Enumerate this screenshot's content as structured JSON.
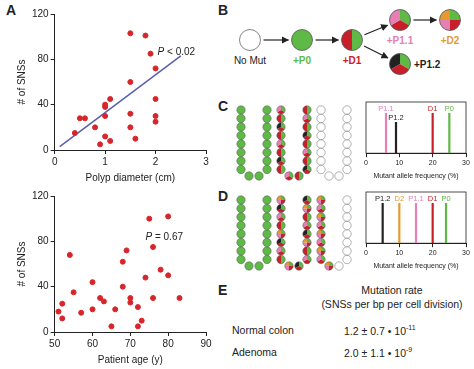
{
  "chart_data": [
    {
      "panel": "A",
      "type": "scatter",
      "x_label": "Polyp diameter (cm)",
      "y_label": "# of SNSs",
      "annotation": "P < 0.02",
      "x": [
        0.4,
        0.5,
        0.6,
        0.8,
        0.9,
        1.0,
        1.0,
        1.0,
        1.1,
        1.0,
        1.1,
        1.5,
        1.5,
        1.5,
        1.6,
        1.8,
        1.9,
        2.0,
        2.0,
        2.0,
        2.0,
        1.5
      ],
      "values": [
        15,
        28,
        28,
        20,
        5,
        30,
        38,
        40,
        45,
        12,
        8,
        103,
        60,
        20,
        10,
        101,
        85,
        72,
        45,
        30,
        25,
        32
      ],
      "color": "#d7262b",
      "xlim": [
        0,
        3
      ],
      "xticks": [
        0,
        1,
        2,
        3
      ],
      "ylim": [
        0,
        120
      ],
      "yticks": [
        0,
        40,
        80,
        120
      ],
      "grid": false,
      "trend_line": {
        "x": [
          0.1,
          2.5
        ],
        "values": [
          3,
          83
        ],
        "color": "#5b5fae"
      }
    },
    {
      "type": "scatter",
      "x_label": "Patient age (y)",
      "y_label": "# of SNSs",
      "annotation": "P = 0.67",
      "x": [
        51,
        52,
        52,
        54,
        55,
        57,
        60,
        60,
        62,
        63,
        65,
        66,
        68,
        68,
        69,
        70,
        70,
        72,
        72,
        74,
        75,
        76,
        76,
        78,
        80,
        80,
        83,
        73
      ],
      "values": [
        18,
        12,
        25,
        68,
        35,
        17,
        20,
        44,
        30,
        27,
        5,
        20,
        40,
        62,
        72,
        30,
        26,
        22,
        5,
        48,
        100,
        75,
        30,
        55,
        102,
        50,
        30,
        10
      ],
      "color": "#d7262b",
      "xlim": [
        50,
        90
      ],
      "xticks": [
        50,
        60,
        70,
        80,
        90
      ],
      "ylim": [
        0,
        120
      ],
      "yticks": [
        0,
        40,
        80,
        120
      ],
      "grid": false
    },
    {
      "panel": "C",
      "type": "spike",
      "x_label": "Mutant allele frequency (%)",
      "categories": [
        "P1.1",
        "P1.2",
        "D1",
        "P0"
      ],
      "values": [
        6,
        9,
        20,
        25
      ],
      "colors": [
        "#e57fb4",
        "#222222",
        "#c8202a",
        "#5fb946"
      ],
      "xlim": [
        0,
        30
      ],
      "xticks": [
        0,
        10,
        20,
        30
      ],
      "grid": false,
      "data_labels": true
    },
    {
      "panel": "D",
      "type": "spike",
      "x_label": "Mutant allele frequency (%)",
      "categories": [
        "P1.2",
        "D2",
        "P1.1",
        "D1",
        "P0"
      ],
      "values": [
        5,
        10,
        15,
        20,
        24
      ],
      "colors": [
        "#222222",
        "#e39a2e",
        "#e57fb4",
        "#c8202a",
        "#5fb946"
      ],
      "xlim": [
        0,
        30
      ],
      "xticks": [
        0,
        10,
        20,
        30
      ],
      "grid": false,
      "data_labels": true
    }
  ],
  "mutations": [
    {
      "name": "P0",
      "color": "#5fb946"
    },
    {
      "name": "D1",
      "color": "#c8202a"
    },
    {
      "name": "P1.1",
      "color": "#e57fb4"
    },
    {
      "name": "P1.2",
      "color": "#222222"
    },
    {
      "name": "D2",
      "color": "#e39a2e"
    }
  ],
  "lineage": {
    "panel": "B",
    "nodes": [
      {
        "label": "No Mut",
        "mutations": []
      },
      {
        "label": "+P0",
        "mutations": [
          "P0"
        ]
      },
      {
        "label": "+D1",
        "mutations": [
          "P0",
          "D1"
        ]
      },
      {
        "label": "+P1.1",
        "mutations": [
          "P0",
          "D1",
          "P1.1"
        ]
      },
      {
        "label": "+P1.2",
        "mutations": [
          "P0",
          "D1",
          "P1.2"
        ]
      },
      {
        "label": "+D2",
        "mutations": [
          "P0",
          "D1",
          "P1.1",
          "D2"
        ]
      }
    ]
  },
  "rates": {
    "panel": "E",
    "title": "Mutation rate",
    "subtitle": "(SNSs per bp per cell division)",
    "rows": [
      {
        "tissue": "Normal colon",
        "value": "1.2 ± 0.7 • 10",
        "exponent": "-11"
      },
      {
        "tissue": "Adenoma",
        "value": "2.0 ± 1.1 • 10",
        "exponent": "-9"
      }
    ]
  }
}
